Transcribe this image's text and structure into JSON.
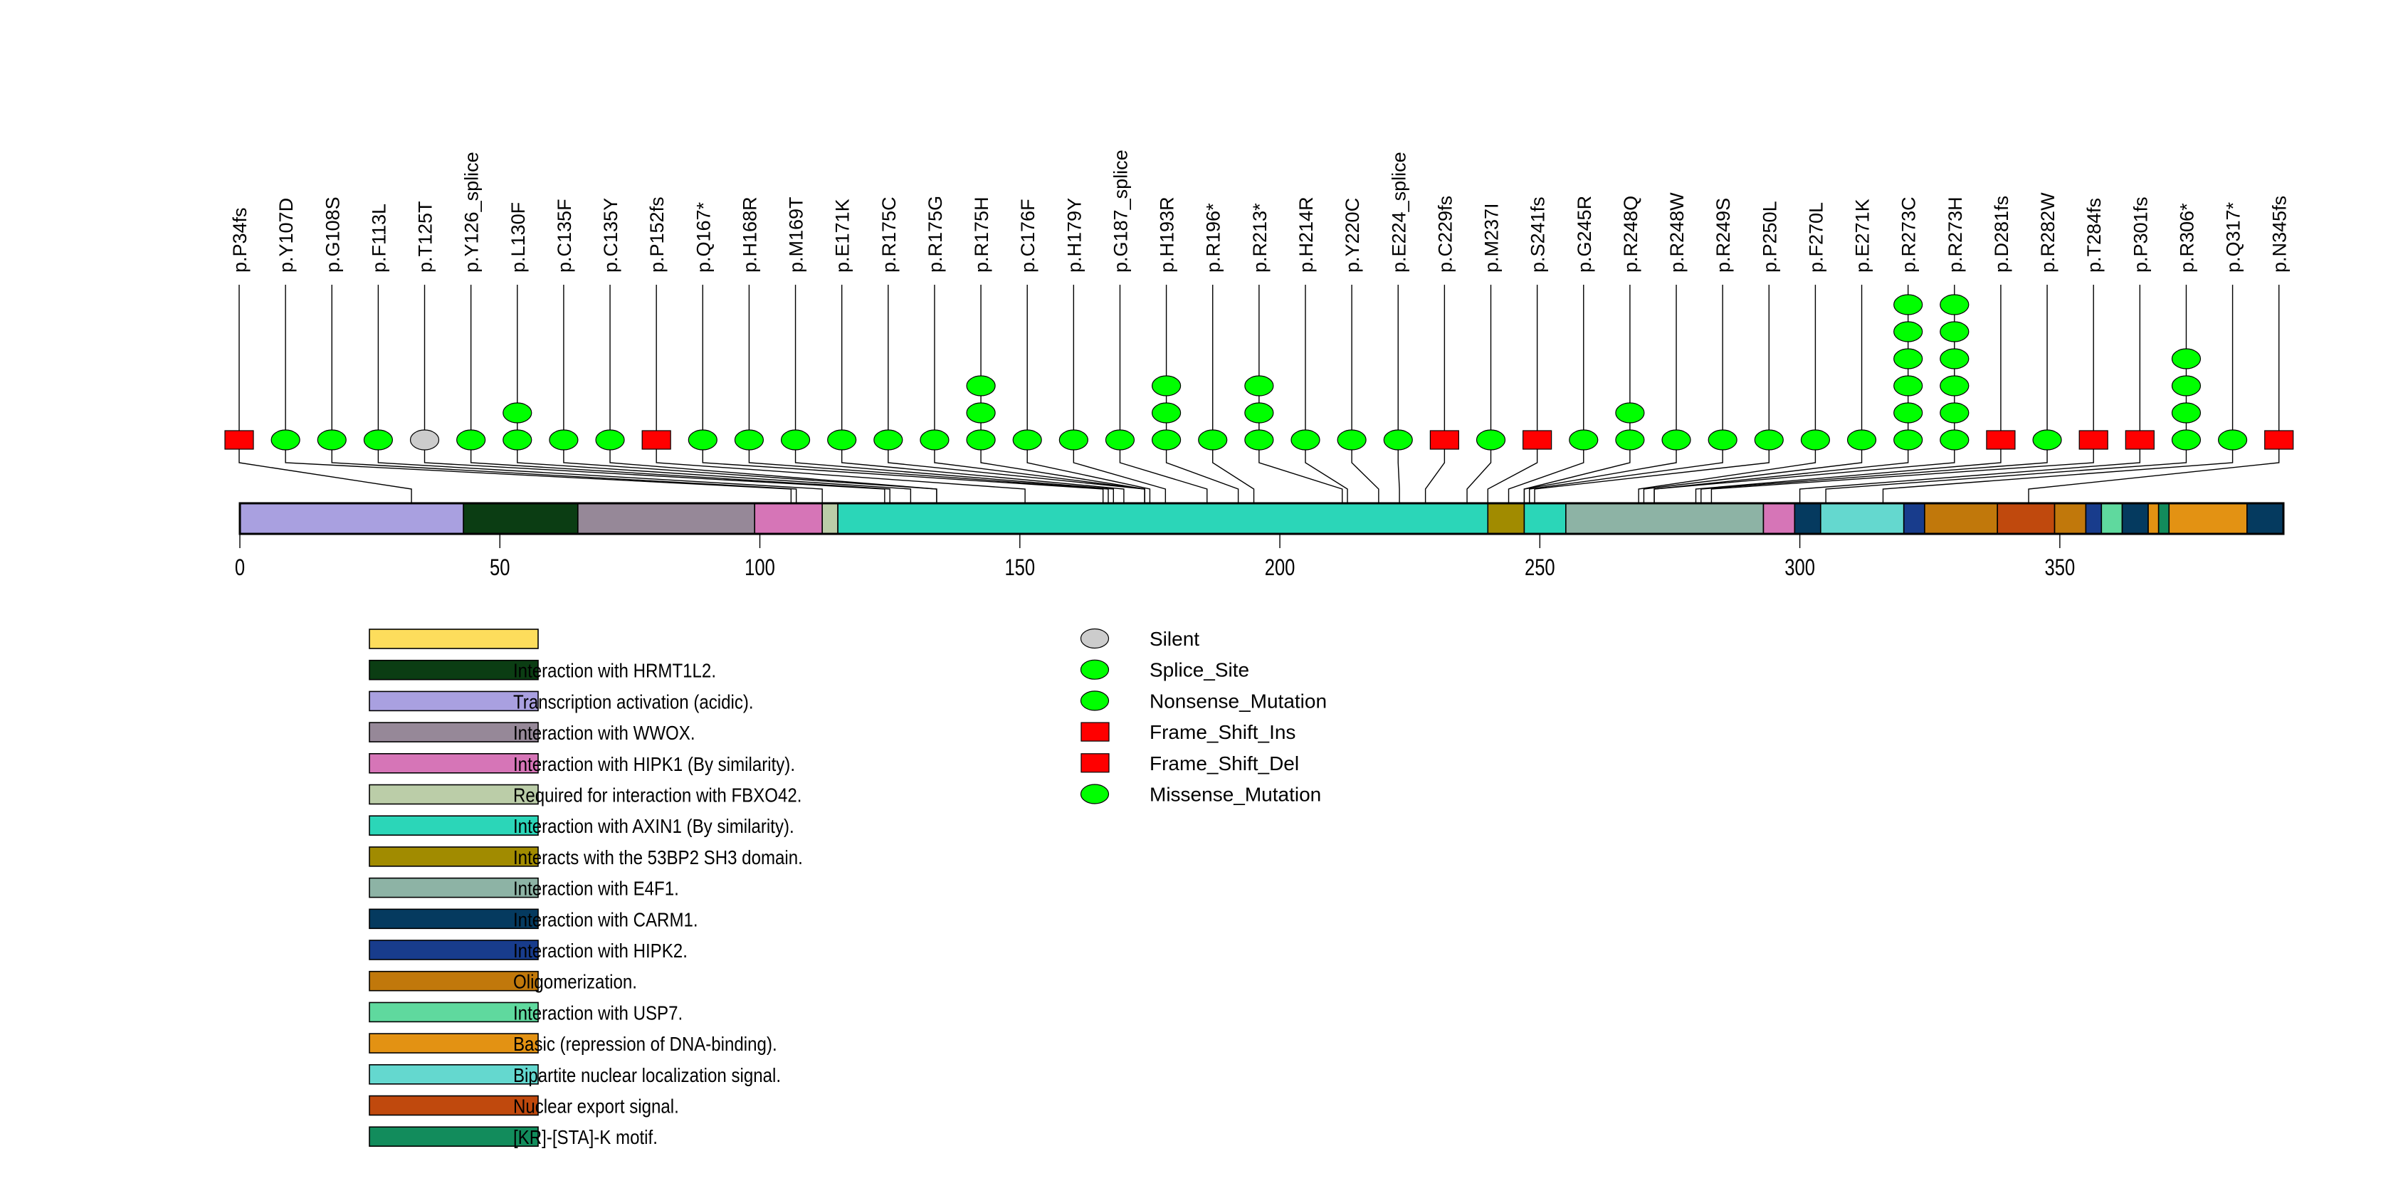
{
  "chart_data": {
    "type": "lollipop",
    "title": "",
    "xlabel": "",
    "ylabel": "",
    "protein_length": 393,
    "xlim": [
      0,
      393
    ],
    "x_ticks": [
      0,
      50,
      100,
      150,
      200,
      250,
      300,
      350
    ],
    "mutation_types": [
      {
        "name": "Silent",
        "shape": "oval",
        "color": "#cccccc"
      },
      {
        "name": "Splice_Site",
        "shape": "oval",
        "color": "#00ff00"
      },
      {
        "name": "Nonsense_Mutation",
        "shape": "oval",
        "color": "#00ff00"
      },
      {
        "name": "Frame_Shift_Ins",
        "shape": "square",
        "color": "#ff0000"
      },
      {
        "name": "Frame_Shift_Del",
        "shape": "square",
        "color": "#ff0000"
      },
      {
        "name": "Missense_Mutation",
        "shape": "oval",
        "color": "#00ff00"
      }
    ],
    "mutations": [
      {
        "label": "p.P34fs",
        "position": 33,
        "count": 1,
        "shape": "square",
        "color": "#ff0000"
      },
      {
        "label": "p.Y107D",
        "position": 106,
        "count": 1,
        "shape": "oval",
        "color": "#00ff00"
      },
      {
        "label": "p.G108S",
        "position": 107,
        "count": 1,
        "shape": "oval",
        "color": "#00ff00"
      },
      {
        "label": "p.F113L",
        "position": 112,
        "count": 1,
        "shape": "oval",
        "color": "#00ff00"
      },
      {
        "label": "p.T125T",
        "position": 124,
        "count": 1,
        "shape": "oval",
        "color": "#cccccc"
      },
      {
        "label": "p.Y126_splice",
        "position": 125,
        "count": 1,
        "shape": "oval",
        "color": "#00ff00"
      },
      {
        "label": "p.L130F",
        "position": 129,
        "count": 2,
        "shape": "oval",
        "color": "#00ff00"
      },
      {
        "label": "p.C135F",
        "position": 134,
        "count": 1,
        "shape": "oval",
        "color": "#00ff00"
      },
      {
        "label": "p.C135Y",
        "position": 134,
        "count": 1,
        "shape": "oval",
        "color": "#00ff00"
      },
      {
        "label": "p.P152fs",
        "position": 151,
        "count": 1,
        "shape": "square",
        "color": "#ff0000"
      },
      {
        "label": "p.Q167*",
        "position": 166,
        "count": 1,
        "shape": "oval",
        "color": "#00ff00"
      },
      {
        "label": "p.H168R",
        "position": 167,
        "count": 1,
        "shape": "oval",
        "color": "#00ff00"
      },
      {
        "label": "p.M169T",
        "position": 168,
        "count": 1,
        "shape": "oval",
        "color": "#00ff00"
      },
      {
        "label": "p.E171K",
        "position": 170,
        "count": 1,
        "shape": "oval",
        "color": "#00ff00"
      },
      {
        "label": "p.R175C",
        "position": 174,
        "count": 1,
        "shape": "oval",
        "color": "#00ff00"
      },
      {
        "label": "p.R175G",
        "position": 174,
        "count": 1,
        "shape": "oval",
        "color": "#00ff00"
      },
      {
        "label": "p.R175H",
        "position": 174,
        "count": 3,
        "shape": "oval",
        "color": "#00ff00"
      },
      {
        "label": "p.C176F",
        "position": 175,
        "count": 1,
        "shape": "oval",
        "color": "#00ff00"
      },
      {
        "label": "p.H179Y",
        "position": 178,
        "count": 1,
        "shape": "oval",
        "color": "#00ff00"
      },
      {
        "label": "p.G187_splice",
        "position": 186,
        "count": 1,
        "shape": "oval",
        "color": "#00ff00"
      },
      {
        "label": "p.H193R",
        "position": 192,
        "count": 3,
        "shape": "oval",
        "color": "#00ff00"
      },
      {
        "label": "p.R196*",
        "position": 195,
        "count": 1,
        "shape": "oval",
        "color": "#00ff00"
      },
      {
        "label": "p.R213*",
        "position": 212,
        "count": 3,
        "shape": "oval",
        "color": "#00ff00"
      },
      {
        "label": "p.H214R",
        "position": 213,
        "count": 1,
        "shape": "oval",
        "color": "#00ff00"
      },
      {
        "label": "p.Y220C",
        "position": 219,
        "count": 1,
        "shape": "oval",
        "color": "#00ff00"
      },
      {
        "label": "p.E224_splice",
        "position": 223,
        "count": 1,
        "shape": "oval",
        "color": "#00ff00"
      },
      {
        "label": "p.C229fs",
        "position": 228,
        "count": 1,
        "shape": "square",
        "color": "#ff0000"
      },
      {
        "label": "p.M237I",
        "position": 236,
        "count": 1,
        "shape": "oval",
        "color": "#00ff00"
      },
      {
        "label": "p.S241fs",
        "position": 240,
        "count": 1,
        "shape": "square",
        "color": "#ff0000"
      },
      {
        "label": "p.G245R",
        "position": 244,
        "count": 1,
        "shape": "oval",
        "color": "#00ff00"
      },
      {
        "label": "p.R248Q",
        "position": 247,
        "count": 2,
        "shape": "oval",
        "color": "#00ff00"
      },
      {
        "label": "p.R248W",
        "position": 247,
        "count": 1,
        "shape": "oval",
        "color": "#00ff00"
      },
      {
        "label": "p.R249S",
        "position": 248,
        "count": 1,
        "shape": "oval",
        "color": "#00ff00"
      },
      {
        "label": "p.P250L",
        "position": 249,
        "count": 1,
        "shape": "oval",
        "color": "#00ff00"
      },
      {
        "label": "p.F270L",
        "position": 269,
        "count": 1,
        "shape": "oval",
        "color": "#00ff00"
      },
      {
        "label": "p.E271K",
        "position": 270,
        "count": 1,
        "shape": "oval",
        "color": "#00ff00"
      },
      {
        "label": "p.R273C",
        "position": 272,
        "count": 6,
        "shape": "oval",
        "color": "#00ff00"
      },
      {
        "label": "p.R273H",
        "position": 272,
        "count": 6,
        "shape": "oval",
        "color": "#00ff00"
      },
      {
        "label": "p.D281fs",
        "position": 280,
        "count": 1,
        "shape": "square",
        "color": "#ff0000"
      },
      {
        "label": "p.R282W",
        "position": 281,
        "count": 1,
        "shape": "oval",
        "color": "#00ff00"
      },
      {
        "label": "p.T284fs",
        "position": 283,
        "count": 1,
        "shape": "square",
        "color": "#ff0000"
      },
      {
        "label": "p.P301fs",
        "position": 300,
        "count": 1,
        "shape": "square",
        "color": "#ff0000"
      },
      {
        "label": "p.R306*",
        "position": 305,
        "count": 4,
        "shape": "oval",
        "color": "#00ff00"
      },
      {
        "label": "p.Q317*",
        "position": 316,
        "count": 1,
        "shape": "oval",
        "color": "#00ff00"
      },
      {
        "label": "p.N345fs",
        "position": 344,
        "count": 1,
        "shape": "square",
        "color": "#ff0000"
      }
    ],
    "domains": [
      {
        "start": 0,
        "end": 43,
        "color": "#a9a0e0"
      },
      {
        "start": 43,
        "end": 65,
        "color": "#0b3d13"
      },
      {
        "start": 65,
        "end": 99,
        "color": "#968898"
      },
      {
        "start": 99,
        "end": 112,
        "color": "#d675b7"
      },
      {
        "start": 112,
        "end": 115,
        "color": "#bbcda8"
      },
      {
        "start": 115,
        "end": 240,
        "color": "#2bd6b8"
      },
      {
        "start": 240,
        "end": 247,
        "color": "#a18b00"
      },
      {
        "start": 247,
        "end": 255,
        "color": "#2bd6b8"
      },
      {
        "start": 255,
        "end": 293,
        "color": "#8db3a5"
      },
      {
        "start": 293,
        "end": 299,
        "color": "#d675b7"
      },
      {
        "start": 299,
        "end": 304,
        "color": "#053a5f"
      },
      {
        "start": 304,
        "end": 320,
        "color": "#64d8cf"
      },
      {
        "start": 320,
        "end": 324,
        "color": "#183c8c"
      },
      {
        "start": 324,
        "end": 338,
        "color": "#c1780b"
      },
      {
        "start": 338,
        "end": 349,
        "color": "#c0490d"
      },
      {
        "start": 349,
        "end": 355,
        "color": "#c1780b"
      },
      {
        "start": 355,
        "end": 358,
        "color": "#183c8c"
      },
      {
        "start": 358,
        "end": 362,
        "color": "#5fd99e"
      },
      {
        "start": 362,
        "end": 367,
        "color": "#053a5f"
      },
      {
        "start": 367,
        "end": 369,
        "color": "#e39213"
      },
      {
        "start": 369,
        "end": 371,
        "color": "#128c5c"
      },
      {
        "start": 371,
        "end": 386,
        "color": "#e39213"
      },
      {
        "start": 386,
        "end": 393,
        "color": "#053a5f"
      }
    ],
    "domain_legend": [
      {
        "label": "",
        "color": "#fddd5c"
      },
      {
        "label": "Interaction with HRMT1L2.",
        "color": "#0b3d13"
      },
      {
        "label": "Transcription activation (acidic).",
        "color": "#a9a0e0"
      },
      {
        "label": "Interaction with WWOX.",
        "color": "#968898"
      },
      {
        "label": "Interaction with HIPK1 (By similarity).",
        "color": "#d675b7"
      },
      {
        "label": "Required for interaction with FBXO42.",
        "color": "#bbcda8"
      },
      {
        "label": "Interaction with AXIN1 (By similarity).",
        "color": "#2bd6b8"
      },
      {
        "label": "Interacts with the 53BP2 SH3 domain.",
        "color": "#a18b00"
      },
      {
        "label": "Interaction with E4F1.",
        "color": "#8db3a5"
      },
      {
        "label": "Interaction with CARM1.",
        "color": "#053a5f"
      },
      {
        "label": "Interaction with HIPK2.",
        "color": "#183c8c"
      },
      {
        "label": "Oligomerization.",
        "color": "#c1780b"
      },
      {
        "label": "Interaction with USP7.",
        "color": "#5fd99e"
      },
      {
        "label": "Basic (repression of DNA-binding).",
        "color": "#e39213"
      },
      {
        "label": "Bipartite nuclear localization signal.",
        "color": "#64d8cf"
      },
      {
        "label": "Nuclear export signal.",
        "color": "#c0490d"
      },
      {
        "label": "[KR]-[STA]-K motif.",
        "color": "#128c5c"
      }
    ],
    "legend_placement": "bottom"
  }
}
